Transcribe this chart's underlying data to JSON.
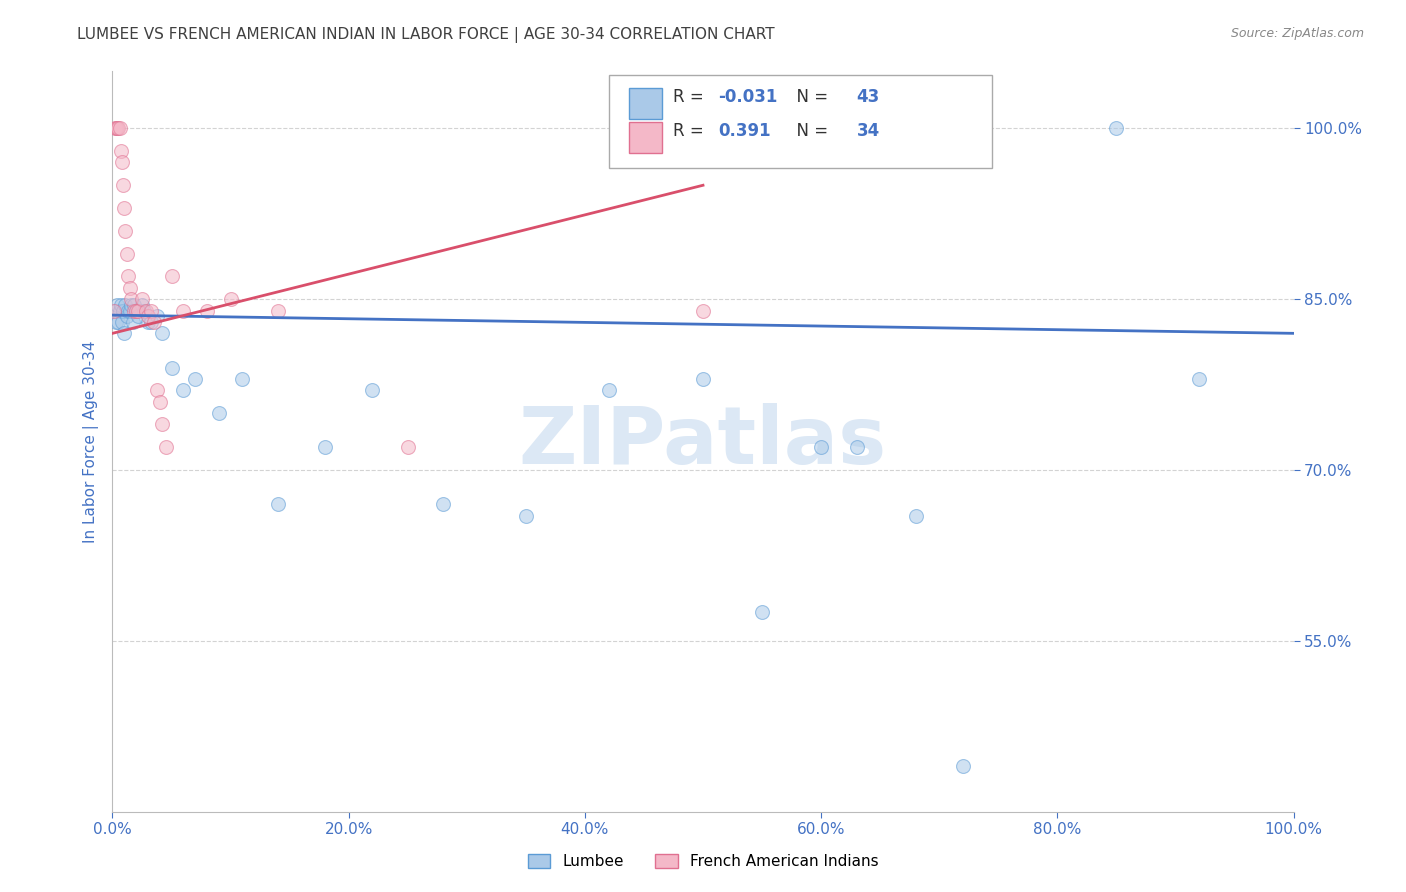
{
  "title": "LUMBEE VS FRENCH AMERICAN INDIAN IN LABOR FORCE | AGE 30-34 CORRELATION CHART",
  "source": "Source: ZipAtlas.com",
  "ylabel": "In Labor Force | Age 30-34",
  "lumbee_R": -0.031,
  "lumbee_N": 43,
  "french_R": 0.391,
  "french_N": 34,
  "lumbee_color": "#aac9e8",
  "lumbee_edge": "#5b9bd5",
  "french_color": "#f4b8c8",
  "french_edge": "#e07090",
  "trend_lumbee_color": "#4472c4",
  "trend_french_color": "#d94f6b",
  "watermark_color": "#dce8f5",
  "tick_color": "#4472c4",
  "grid_color": "#c8c8c8",
  "title_color": "#404040",
  "lumbee_x": [
    0.002,
    0.003,
    0.004,
    0.005,
    0.006,
    0.007,
    0.008,
    0.009,
    0.01,
    0.011,
    0.012,
    0.013,
    0.015,
    0.016,
    0.017,
    0.018,
    0.02,
    0.022,
    0.025,
    0.027,
    0.03,
    0.033,
    0.038,
    0.042,
    0.05,
    0.06,
    0.07,
    0.09,
    0.11,
    0.14,
    0.18,
    0.22,
    0.28,
    0.35,
    0.42,
    0.5,
    0.55,
    0.6,
    0.63,
    0.68,
    0.72,
    0.85,
    0.92
  ],
  "lumbee_y": [
    0.84,
    0.83,
    0.845,
    0.83,
    0.84,
    0.845,
    0.83,
    0.84,
    0.82,
    0.845,
    0.835,
    0.84,
    0.84,
    0.845,
    0.83,
    0.845,
    0.84,
    0.835,
    0.845,
    0.84,
    0.83,
    0.83,
    0.835,
    0.82,
    0.79,
    0.77,
    0.78,
    0.75,
    0.78,
    0.67,
    0.72,
    0.77,
    0.67,
    0.66,
    0.77,
    0.78,
    0.575,
    0.72,
    0.72,
    0.66,
    0.44,
    1.0,
    0.78
  ],
  "french_x": [
    0.001,
    0.002,
    0.003,
    0.004,
    0.005,
    0.006,
    0.007,
    0.008,
    0.009,
    0.01,
    0.011,
    0.012,
    0.013,
    0.015,
    0.016,
    0.018,
    0.02,
    0.022,
    0.025,
    0.028,
    0.03,
    0.033,
    0.035,
    0.038,
    0.04,
    0.042,
    0.045,
    0.05,
    0.06,
    0.08,
    0.1,
    0.14,
    0.25,
    0.5
  ],
  "french_y": [
    0.84,
    1.0,
    1.0,
    1.0,
    1.0,
    1.0,
    0.98,
    0.97,
    0.95,
    0.93,
    0.91,
    0.89,
    0.87,
    0.86,
    0.85,
    0.84,
    0.84,
    0.84,
    0.85,
    0.84,
    0.835,
    0.84,
    0.83,
    0.77,
    0.76,
    0.74,
    0.72,
    0.87,
    0.84,
    0.84,
    0.85,
    0.84,
    0.72,
    0.84
  ],
  "xlim": [
    0.0,
    1.0
  ],
  "ylim": [
    0.4,
    1.05
  ],
  "yticks": [
    0.55,
    0.7,
    0.85,
    1.0
  ],
  "ytick_labels": [
    "55.0%",
    "70.0%",
    "85.0%",
    "100.0%"
  ],
  "xticks": [
    0.0,
    0.2,
    0.4,
    0.6,
    0.8,
    1.0
  ],
  "xtick_labels": [
    "0.0%",
    "20.0%",
    "40.0%",
    "60.0%",
    "80.0%",
    "100.0%"
  ],
  "marker_size": 100,
  "marker_alpha": 0.55,
  "figsize": [
    14.06,
    8.92
  ],
  "dpi": 100
}
